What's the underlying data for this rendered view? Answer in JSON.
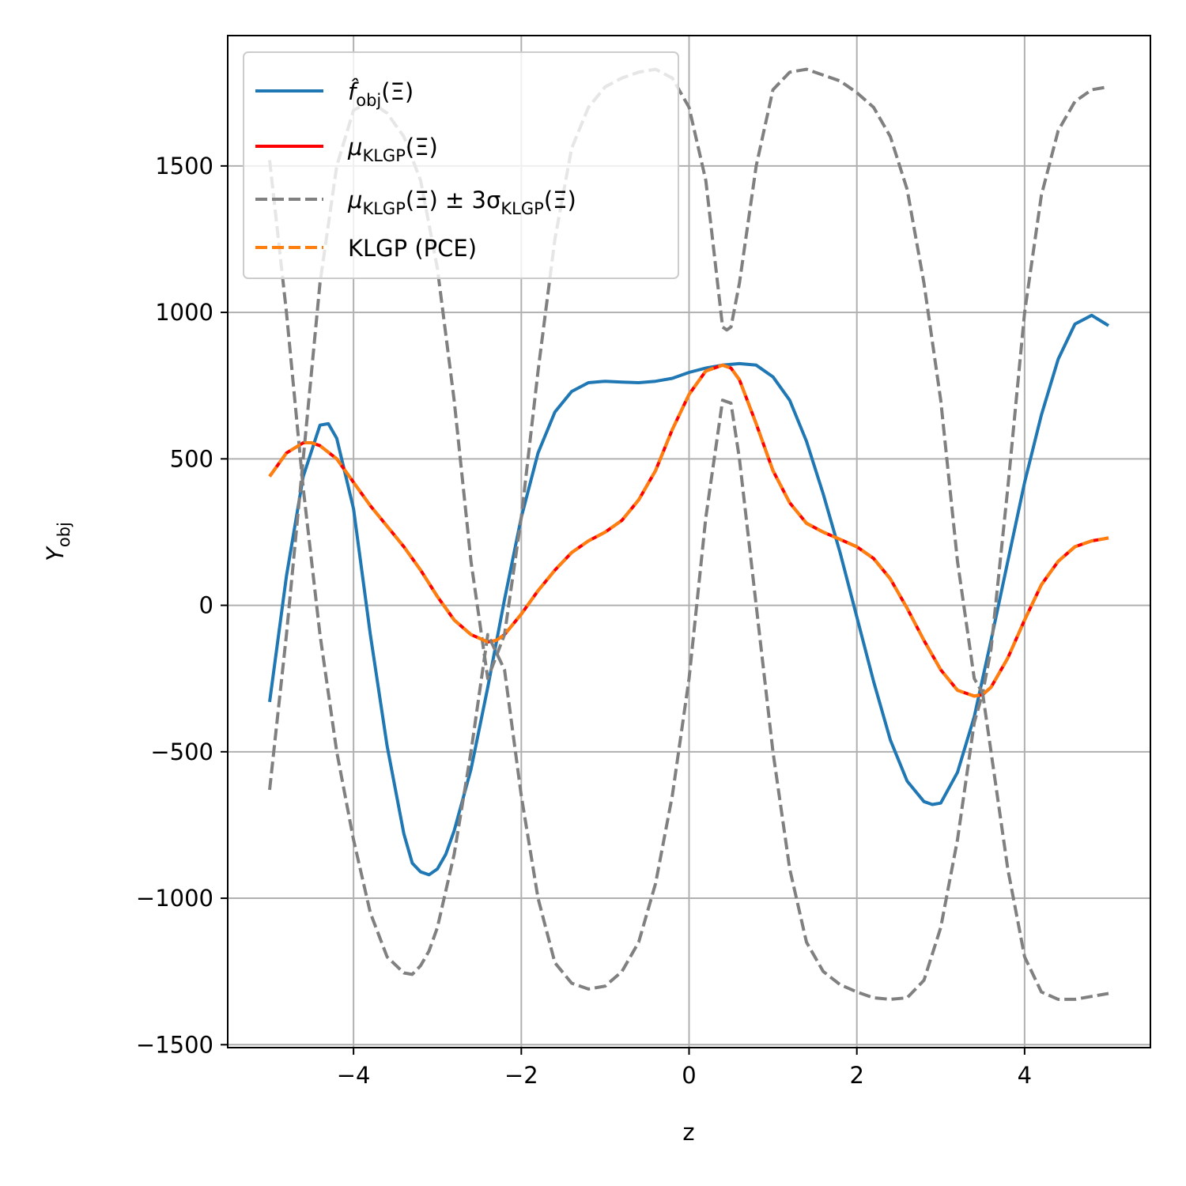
{
  "chart_data": {
    "type": "line",
    "xlabel": "z",
    "ylabel": "Y",
    "ylabel_sub": "obj",
    "xlim": [
      -5.5,
      5.5
    ],
    "ylim": [
      -1510,
      1945
    ],
    "xticks": [
      -4,
      -2,
      0,
      2,
      4
    ],
    "xtick_labels": [
      "−4",
      "−2",
      "0",
      "2",
      "4"
    ],
    "yticks": [
      -1500,
      -1000,
      -500,
      0,
      500,
      1000,
      1500
    ],
    "ytick_labels": [
      "−1500",
      "−1000",
      "−500",
      "0",
      "500",
      "1000",
      "1500"
    ],
    "grid": true,
    "legend_position": "upper-left",
    "legend": [
      {
        "main": "f̂",
        "sub": "obj",
        "tail": "(Ξ)"
      },
      {
        "main": "μ",
        "sub": "KLGP",
        "tail": "(Ξ)"
      },
      {
        "main": "μ",
        "sub": "KLGP",
        "tail": "(Ξ) ± 3σ",
        "sub2": "KLGP",
        "tail2": "(Ξ)"
      },
      {
        "main": "KLGP (PCE)",
        "sub": "",
        "tail": ""
      }
    ],
    "series": [
      {
        "name": "f̂obj(Ξ)",
        "color": "#1f77b4",
        "style": "solid",
        "x": [
          -5.0,
          -4.8,
          -4.6,
          -4.4,
          -4.3,
          -4.2,
          -4.0,
          -3.8,
          -3.6,
          -3.4,
          -3.3,
          -3.2,
          -3.1,
          -3.0,
          -2.9,
          -2.8,
          -2.6,
          -2.4,
          -2.2,
          -2.0,
          -1.8,
          -1.6,
          -1.4,
          -1.2,
          -1.0,
          -0.8,
          -0.6,
          -0.4,
          -0.2,
          0.0,
          0.2,
          0.4,
          0.6,
          0.8,
          1.0,
          1.2,
          1.4,
          1.6,
          1.8,
          2.0,
          2.2,
          2.4,
          2.6,
          2.8,
          2.9,
          3.0,
          3.2,
          3.4,
          3.6,
          3.8,
          4.0,
          4.2,
          4.4,
          4.6,
          4.8,
          5.0
        ],
        "y": [
          -330,
          100,
          440,
          615,
          620,
          570,
          330,
          -100,
          -480,
          -780,
          -880,
          -910,
          -920,
          -900,
          -850,
          -770,
          -560,
          -280,
          20,
          300,
          520,
          660,
          730,
          760,
          765,
          762,
          760,
          765,
          775,
          795,
          810,
          820,
          825,
          820,
          780,
          700,
          560,
          380,
          180,
          -40,
          -260,
          -460,
          -600,
          -670,
          -680,
          -675,
          -570,
          -380,
          -120,
          150,
          420,
          650,
          840,
          960,
          990,
          955
        ]
      },
      {
        "name": "μKLGP(Ξ)",
        "color": "#ff0000",
        "style": "solid",
        "x": [
          -5.0,
          -4.8,
          -4.6,
          -4.5,
          -4.4,
          -4.2,
          -4.0,
          -3.8,
          -3.6,
          -3.4,
          -3.2,
          -3.0,
          -2.8,
          -2.6,
          -2.4,
          -2.3,
          -2.2,
          -2.0,
          -1.8,
          -1.6,
          -1.4,
          -1.2,
          -1.0,
          -0.8,
          -0.6,
          -0.4,
          -0.2,
          0.0,
          0.2,
          0.4,
          0.5,
          0.6,
          0.8,
          1.0,
          1.2,
          1.4,
          1.6,
          1.8,
          2.0,
          2.2,
          2.4,
          2.6,
          2.8,
          3.0,
          3.2,
          3.4,
          3.5,
          3.6,
          3.8,
          4.0,
          4.2,
          4.4,
          4.6,
          4.8,
          5.0
        ],
        "y": [
          440,
          520,
          555,
          555,
          545,
          500,
          420,
          340,
          270,
          200,
          120,
          30,
          -50,
          -100,
          -125,
          -120,
          -100,
          -30,
          50,
          120,
          180,
          220,
          250,
          290,
          360,
          460,
          600,
          720,
          800,
          820,
          810,
          770,
          620,
          460,
          350,
          280,
          250,
          225,
          200,
          160,
          90,
          -10,
          -120,
          -220,
          -290,
          -310,
          -305,
          -280,
          -180,
          -50,
          70,
          150,
          200,
          220,
          230
        ]
      },
      {
        "name": "μKLGP(Ξ) + 3σKLGP(Ξ)",
        "color": "#808080",
        "style": "dashed",
        "x": [
          -5.0,
          -4.8,
          -4.6,
          -4.4,
          -4.2,
          -4.0,
          -3.8,
          -3.7,
          -3.6,
          -3.4,
          -3.2,
          -3.0,
          -2.8,
          -2.6,
          -2.4,
          -2.2,
          -2.0,
          -1.8,
          -1.6,
          -1.4,
          -1.2,
          -1.0,
          -0.8,
          -0.6,
          -0.4,
          -0.2,
          0.0,
          0.2,
          0.4,
          0.45,
          0.5,
          0.6,
          0.8,
          1.0,
          1.2,
          1.4,
          1.6,
          1.8,
          2.0,
          2.2,
          2.4,
          2.6,
          2.8,
          3.0,
          3.2,
          3.4,
          3.5,
          3.6,
          3.8,
          4.0,
          4.2,
          4.4,
          4.6,
          4.8,
          5.0
        ],
        "y": [
          -630,
          -100,
          500,
          1100,
          1500,
          1690,
          1720,
          1700,
          1680,
          1600,
          1450,
          1150,
          700,
          150,
          -250,
          -100,
          300,
          800,
          1250,
          1560,
          1700,
          1770,
          1800,
          1820,
          1830,
          1800,
          1700,
          1450,
          950,
          940,
          950,
          1100,
          1500,
          1760,
          1820,
          1830,
          1810,
          1790,
          1750,
          1700,
          1600,
          1420,
          1100,
          700,
          150,
          -250,
          -300,
          -150,
          400,
          1000,
          1400,
          1620,
          1720,
          1760,
          1770
        ]
      },
      {
        "name": "μKLGP(Ξ) − 3σKLGP(Ξ)",
        "color": "#808080",
        "style": "dashed",
        "x": [
          -5.0,
          -4.8,
          -4.6,
          -4.4,
          -4.2,
          -4.0,
          -3.8,
          -3.6,
          -3.4,
          -3.3,
          -3.2,
          -3.1,
          -3.0,
          -2.8,
          -2.6,
          -2.4,
          -2.2,
          -2.0,
          -1.8,
          -1.6,
          -1.4,
          -1.2,
          -1.0,
          -0.8,
          -0.6,
          -0.4,
          -0.2,
          0.0,
          0.2,
          0.4,
          0.5,
          0.6,
          0.8,
          1.0,
          1.2,
          1.4,
          1.6,
          1.8,
          2.0,
          2.2,
          2.4,
          2.6,
          2.8,
          3.0,
          3.2,
          3.4,
          3.5,
          3.6,
          3.8,
          4.0,
          4.2,
          4.4,
          4.6,
          4.8,
          5.0
        ],
        "y": [
          1520,
          1000,
          400,
          -100,
          -500,
          -800,
          -1050,
          -1200,
          -1255,
          -1260,
          -1230,
          -1180,
          -1100,
          -850,
          -500,
          -100,
          -220,
          -650,
          -1000,
          -1220,
          -1290,
          -1310,
          -1300,
          -1250,
          -1150,
          -950,
          -650,
          -250,
          300,
          700,
          690,
          500,
          0,
          -500,
          -900,
          -1150,
          -1250,
          -1295,
          -1320,
          -1340,
          -1345,
          -1340,
          -1280,
          -1100,
          -800,
          -400,
          -300,
          -500,
          -900,
          -1200,
          -1320,
          -1345,
          -1345,
          -1335,
          -1325
        ]
      },
      {
        "name": "KLGP (PCE)",
        "color": "#ff7f0e",
        "style": "dashed",
        "x": [
          -5.0,
          -4.8,
          -4.6,
          -4.5,
          -4.4,
          -4.2,
          -4.0,
          -3.8,
          -3.6,
          -3.4,
          -3.2,
          -3.0,
          -2.8,
          -2.6,
          -2.4,
          -2.3,
          -2.2,
          -2.0,
          -1.8,
          -1.6,
          -1.4,
          -1.2,
          -1.0,
          -0.8,
          -0.6,
          -0.4,
          -0.2,
          0.0,
          0.2,
          0.4,
          0.5,
          0.6,
          0.8,
          1.0,
          1.2,
          1.4,
          1.6,
          1.8,
          2.0,
          2.2,
          2.4,
          2.6,
          2.8,
          3.0,
          3.2,
          3.4,
          3.5,
          3.6,
          3.8,
          4.0,
          4.2,
          4.4,
          4.6,
          4.8,
          5.0
        ],
        "y": [
          440,
          520,
          555,
          555,
          545,
          500,
          420,
          340,
          270,
          200,
          120,
          30,
          -50,
          -100,
          -125,
          -120,
          -100,
          -30,
          50,
          120,
          180,
          220,
          250,
          290,
          360,
          460,
          600,
          720,
          800,
          820,
          810,
          770,
          620,
          460,
          350,
          280,
          250,
          225,
          200,
          160,
          90,
          -10,
          -120,
          -220,
          -290,
          -310,
          -305,
          -280,
          -180,
          -50,
          70,
          150,
          200,
          220,
          230
        ]
      }
    ]
  }
}
